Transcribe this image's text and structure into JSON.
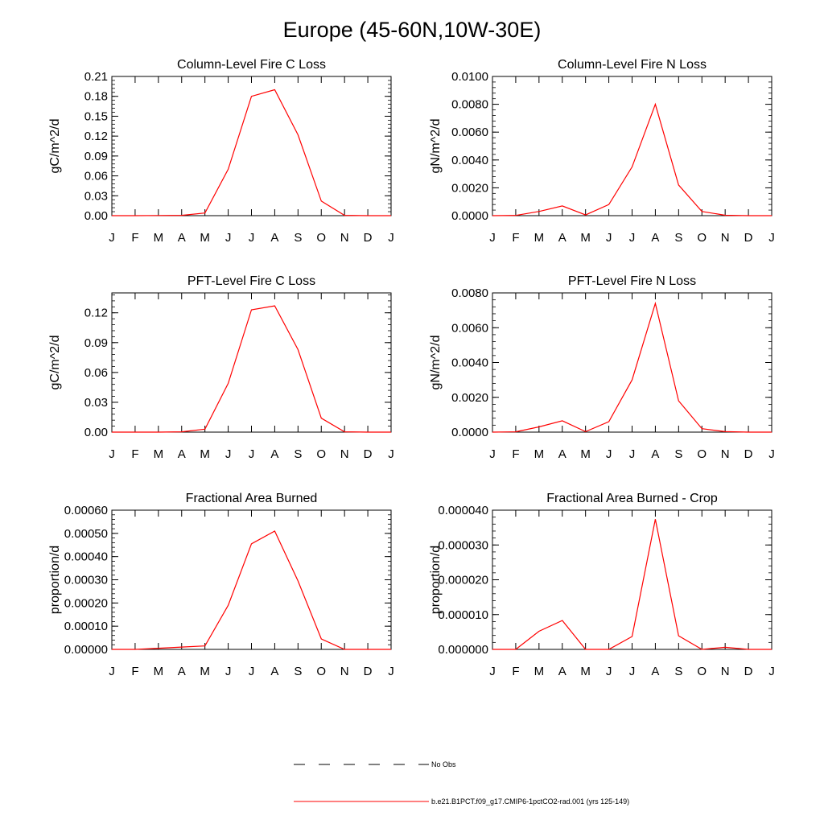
{
  "title": "Europe (45-60N,10W-30E)",
  "months": [
    "J",
    "F",
    "M",
    "A",
    "M",
    "J",
    "J",
    "A",
    "S",
    "O",
    "N",
    "D",
    "J"
  ],
  "legend": [
    {
      "label": "No Obs",
      "color": "#000000",
      "style": "dashed"
    },
    {
      "label": "b.e21.B1PCT.f09_g17.CMIP6-1pctCO2-rad.001 (yrs 125-149)",
      "color": "#ff0000",
      "style": "solid"
    }
  ],
  "chart_data": [
    {
      "type": "line",
      "title": "Column-Level Fire C Loss",
      "ylabel": "gC/m^2/d",
      "ylim": [
        0,
        0.21
      ],
      "yticks": [
        "0.00",
        "0.03",
        "0.06",
        "0.09",
        "0.12",
        "0.15",
        "0.18",
        "0.21"
      ],
      "series": [
        {
          "color": "#ff0000",
          "values": [
            0.0,
            0.0,
            0.0002,
            0.0005,
            0.004,
            0.07,
            0.18,
            0.19,
            0.122,
            0.022,
            0.0005,
            0.0,
            0.0
          ]
        }
      ]
    },
    {
      "type": "line",
      "title": "Column-Level Fire N Loss",
      "ylabel": "gN/m^2/d",
      "ylim": [
        0,
        0.01
      ],
      "yticks": [
        "0.0000",
        "0.0020",
        "0.0040",
        "0.0060",
        "0.0080",
        "0.0100"
      ],
      "series": [
        {
          "color": "#ff0000",
          "values": [
            0.0,
            2e-05,
            0.0003,
            0.0007,
            5e-05,
            0.0008,
            0.0035,
            0.008,
            0.0022,
            0.0003,
            3e-05,
            0.0,
            0.0
          ]
        }
      ]
    },
    {
      "type": "line",
      "title": "PFT-Level Fire C Loss",
      "ylabel": "gC/m^2/d",
      "ylim": [
        0,
        0.14
      ],
      "yticks": [
        "0.00",
        "0.03",
        "0.06",
        "0.09",
        "0.12"
      ],
      "series": [
        {
          "color": "#ff0000",
          "values": [
            0.0,
            0.0,
            0.0,
            0.0003,
            0.003,
            0.049,
            0.123,
            0.127,
            0.083,
            0.014,
            0.0003,
            0.0,
            0.0
          ]
        }
      ]
    },
    {
      "type": "line",
      "title": "PFT-Level Fire N Loss",
      "ylabel": "gN/m^2/d",
      "ylim": [
        0,
        0.008
      ],
      "yticks": [
        "0.0000",
        "0.0020",
        "0.0040",
        "0.0060",
        "0.0080"
      ],
      "series": [
        {
          "color": "#ff0000",
          "values": [
            0.0,
            2e-05,
            0.0003,
            0.00065,
            3e-05,
            0.0006,
            0.003,
            0.0074,
            0.0018,
            0.0002,
            3e-05,
            0.0,
            0.0
          ]
        }
      ]
    },
    {
      "type": "line",
      "title": "Fractional Area Burned",
      "ylabel": "proportion/d",
      "ylim": [
        0,
        0.0006
      ],
      "yticks": [
        "0.00000",
        "0.00010",
        "0.00020",
        "0.00030",
        "0.00040",
        "0.00050",
        "0.00060"
      ],
      "series": [
        {
          "color": "#ff0000",
          "values": [
            0.0,
            0.0,
            5e-06,
            1e-05,
            1.5e-05,
            0.00019,
            0.000455,
            0.00051,
            0.000295,
            4.5e-05,
            0.0,
            0.0,
            0.0
          ]
        }
      ]
    },
    {
      "type": "line",
      "title": "Fractional Area Burned - Crop",
      "ylabel": "proportion/d",
      "ylim": [
        0,
        4e-05
      ],
      "yticks": [
        "0.000000",
        "0.000010",
        "0.000020",
        "0.000030",
        "0.000040"
      ],
      "series": [
        {
          "color": "#ff0000",
          "values": [
            0.0,
            0.0,
            5.2e-06,
            8.3e-06,
            0.0,
            0.0,
            3.7e-06,
            3.74e-05,
            3.9e-06,
            0.0,
            6e-07,
            0.0,
            0.0
          ]
        }
      ]
    }
  ]
}
